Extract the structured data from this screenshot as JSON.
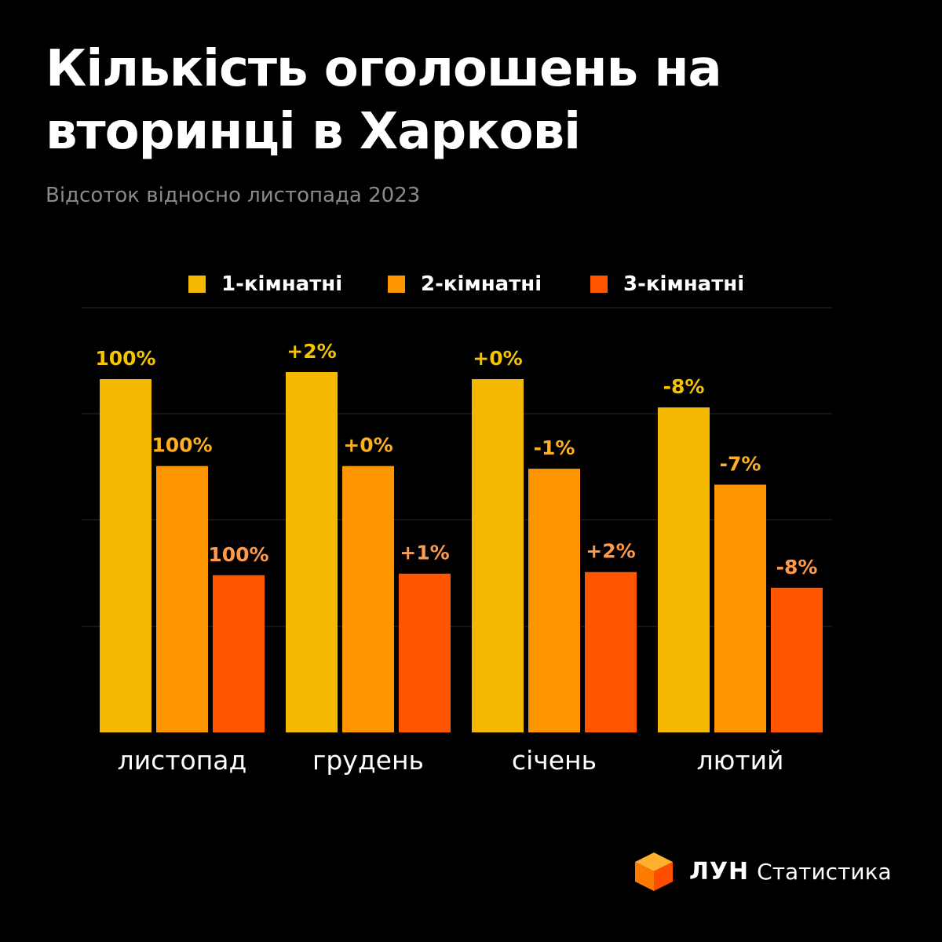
{
  "title_lines": [
    "Кількість оголошень на",
    "вторинці в Харкові"
  ],
  "subtitle": "Відсоток відносно листопада 2023",
  "legend": [
    {
      "label": "1-кімнатні",
      "color": "#f5b800"
    },
    {
      "label": "2-кімнатні",
      "color": "#ff9500"
    },
    {
      "label": "3-кімнатні",
      "color": "#ff5400"
    }
  ],
  "brand": {
    "name": "ЛУН",
    "subtitle": "Статистика",
    "logo_icon": "orange-cube-icon"
  },
  "chart_data": {
    "type": "bar",
    "title": "Кількість оголошень на вторинці в Харкові",
    "subtitle": "Відсоток відносно листопада 2023",
    "categories": [
      "листопад",
      "грудень",
      "січень",
      "лютий"
    ],
    "series": [
      {
        "name": "1-кімнатні",
        "color": "#f5b800",
        "values": [
          100,
          102,
          100,
          92
        ],
        "labels": [
          "100%",
          "+2%",
          "+0%",
          "-8%"
        ]
      },
      {
        "name": "2-кімнатні",
        "color": "#ff9500",
        "values": [
          100,
          100,
          99,
          93
        ],
        "labels": [
          "100%",
          "+0%",
          "-1%",
          "-7%"
        ]
      },
      {
        "name": "3-кімнатні",
        "color": "#ff5400",
        "values": [
          100,
          101,
          102,
          92
        ],
        "labels": [
          "100%",
          "+1%",
          "+2%",
          "-8%"
        ]
      }
    ],
    "grid": true,
    "legend_position": "top"
  }
}
